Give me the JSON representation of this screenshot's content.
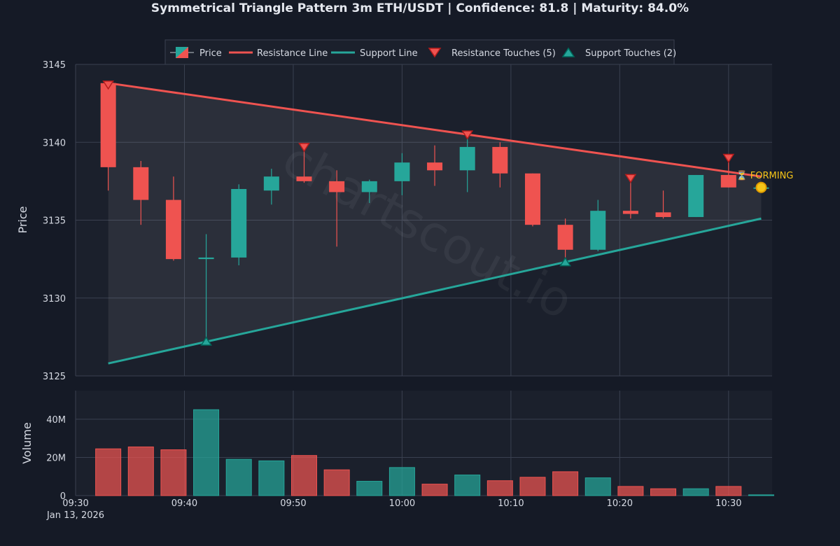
{
  "chart_data": {
    "type": "candlestick",
    "title": "Symmetrical Triangle Pattern 3m ETH/USDT | Confidence: 81.8 | Maturity: 84.0%",
    "watermark": "chartscout.io",
    "y_label": "Price",
    "volume_label": "Volume",
    "price_ylim": [
      3125,
      3145
    ],
    "price_ticks": [
      "3125",
      "3130",
      "3135",
      "3140",
      "3145"
    ],
    "volume_ylim": [
      0,
      55000000
    ],
    "volume_ticks": [
      {
        "value": 0,
        "label": "0"
      },
      {
        "value": 20000000,
        "label": "20M"
      },
      {
        "value": 40000000,
        "label": "40M"
      }
    ],
    "x_range_minutes": [
      0,
      64
    ],
    "x_ticks": [
      {
        "minute": 0,
        "label": "09:30",
        "sublabel": "Jan 13, 2026"
      },
      {
        "minute": 10,
        "label": "09:40"
      },
      {
        "minute": 20,
        "label": "09:50"
      },
      {
        "minute": 30,
        "label": "10:00"
      },
      {
        "minute": 40,
        "label": "10:10"
      },
      {
        "minute": 50,
        "label": "10:20"
      },
      {
        "minute": 60,
        "label": "10:30"
      }
    ],
    "legend": {
      "price": "Price",
      "resistance": "Resistance Line",
      "support": "Support Line",
      "resistance_touches": "Resistance Touches (5)",
      "support_touches": "Support Touches (2)"
    },
    "colors": {
      "up": "#26a69a",
      "down": "#ef5350",
      "resistance": "#ef5350",
      "support": "#26a69a",
      "forming": "#f5c518"
    },
    "candles": [
      {
        "t": "09:33",
        "m": 3,
        "o": 3143.8,
        "h": 3143.8,
        "l": 3136.9,
        "c": 3138.4,
        "v": 24500000
      },
      {
        "t": "09:36",
        "m": 6,
        "o": 3138.4,
        "h": 3138.8,
        "l": 3134.7,
        "c": 3136.3,
        "v": 25500000
      },
      {
        "t": "09:39",
        "m": 9,
        "o": 3136.3,
        "h": 3137.8,
        "l": 3132.4,
        "c": 3132.5,
        "v": 24000000
      },
      {
        "t": "09:42",
        "m": 12,
        "o": 3132.5,
        "h": 3134.1,
        "l": 3127.2,
        "c": 3132.6,
        "v": 45000000
      },
      {
        "t": "09:45",
        "m": 15,
        "o": 3132.6,
        "h": 3137.3,
        "l": 3132.1,
        "c": 3137.0,
        "v": 19000000
      },
      {
        "t": "09:48",
        "m": 18,
        "o": 3136.9,
        "h": 3138.3,
        "l": 3136.0,
        "c": 3137.8,
        "v": 18200000
      },
      {
        "t": "09:51",
        "m": 21,
        "o": 3137.8,
        "h": 3139.7,
        "l": 3137.4,
        "c": 3137.5,
        "v": 21000000
      },
      {
        "t": "09:54",
        "m": 24,
        "o": 3137.5,
        "h": 3138.2,
        "l": 3133.3,
        "c": 3136.8,
        "v": 13500000
      },
      {
        "t": "09:57",
        "m": 27,
        "o": 3136.8,
        "h": 3137.6,
        "l": 3136.1,
        "c": 3137.5,
        "v": 7500000
      },
      {
        "t": "10:00",
        "m": 30,
        "o": 3137.5,
        "h": 3139.3,
        "l": 3136.6,
        "c": 3138.7,
        "v": 14700000
      },
      {
        "t": "10:03",
        "m": 33,
        "o": 3138.7,
        "h": 3139.8,
        "l": 3137.2,
        "c": 3138.2,
        "v": 6000000
      },
      {
        "t": "10:06",
        "m": 36,
        "o": 3138.2,
        "h": 3140.5,
        "l": 3136.8,
        "c": 3139.7,
        "v": 10800000
      },
      {
        "t": "10:09",
        "m": 39,
        "o": 3139.7,
        "h": 3140.0,
        "l": 3137.1,
        "c": 3138.0,
        "v": 7800000
      },
      {
        "t": "10:12",
        "m": 42,
        "o": 3138.0,
        "h": 3138.0,
        "l": 3134.6,
        "c": 3134.7,
        "v": 9600000
      },
      {
        "t": "10:15",
        "m": 45,
        "o": 3134.7,
        "h": 3135.1,
        "l": 3132.3,
        "c": 3133.1,
        "v": 12500000
      },
      {
        "t": "10:18",
        "m": 48,
        "o": 3133.1,
        "h": 3136.3,
        "l": 3133.0,
        "c": 3135.6,
        "v": 9300000
      },
      {
        "t": "10:21",
        "m": 51,
        "o": 3135.6,
        "h": 3137.4,
        "l": 3135.1,
        "c": 3135.4,
        "v": 4800000
      },
      {
        "t": "10:24",
        "m": 54,
        "o": 3135.5,
        "h": 3136.9,
        "l": 3135.1,
        "c": 3135.2,
        "v": 3600000
      },
      {
        "t": "10:27",
        "m": 57,
        "o": 3135.2,
        "h": 3137.9,
        "l": 3135.2,
        "c": 3137.9,
        "v": 3600000
      },
      {
        "t": "10:30",
        "m": 60,
        "o": 3137.9,
        "h": 3138.9,
        "l": 3137.1,
        "c": 3137.1,
        "v": 4800000
      },
      {
        "t": "10:33",
        "m": 63,
        "o": 3137.1,
        "h": 3137.1,
        "l": 3137.1,
        "c": 3137.1,
        "v": 400000
      }
    ],
    "resistance_line": {
      "start": {
        "m": 3,
        "price": 3143.8
      },
      "end": {
        "m": 63,
        "price": 3137.8
      }
    },
    "support_line": {
      "start": {
        "m": 3,
        "price": 3125.8
      },
      "end": {
        "m": 63,
        "price": 3135.1
      }
    },
    "resistance_touches": [
      {
        "m": 3,
        "price": 3143.7
      },
      {
        "m": 21,
        "price": 3139.7
      },
      {
        "m": 36,
        "price": 3140.5
      },
      {
        "m": 51,
        "price": 3137.7
      },
      {
        "m": 60,
        "price": 3139.0
      }
    ],
    "support_touches": [
      {
        "m": 12,
        "price": 3127.2
      },
      {
        "m": 45,
        "price": 3132.3
      }
    ],
    "forming": {
      "label": "⏳ FORMING",
      "m": 63,
      "price": 3137.1
    }
  }
}
